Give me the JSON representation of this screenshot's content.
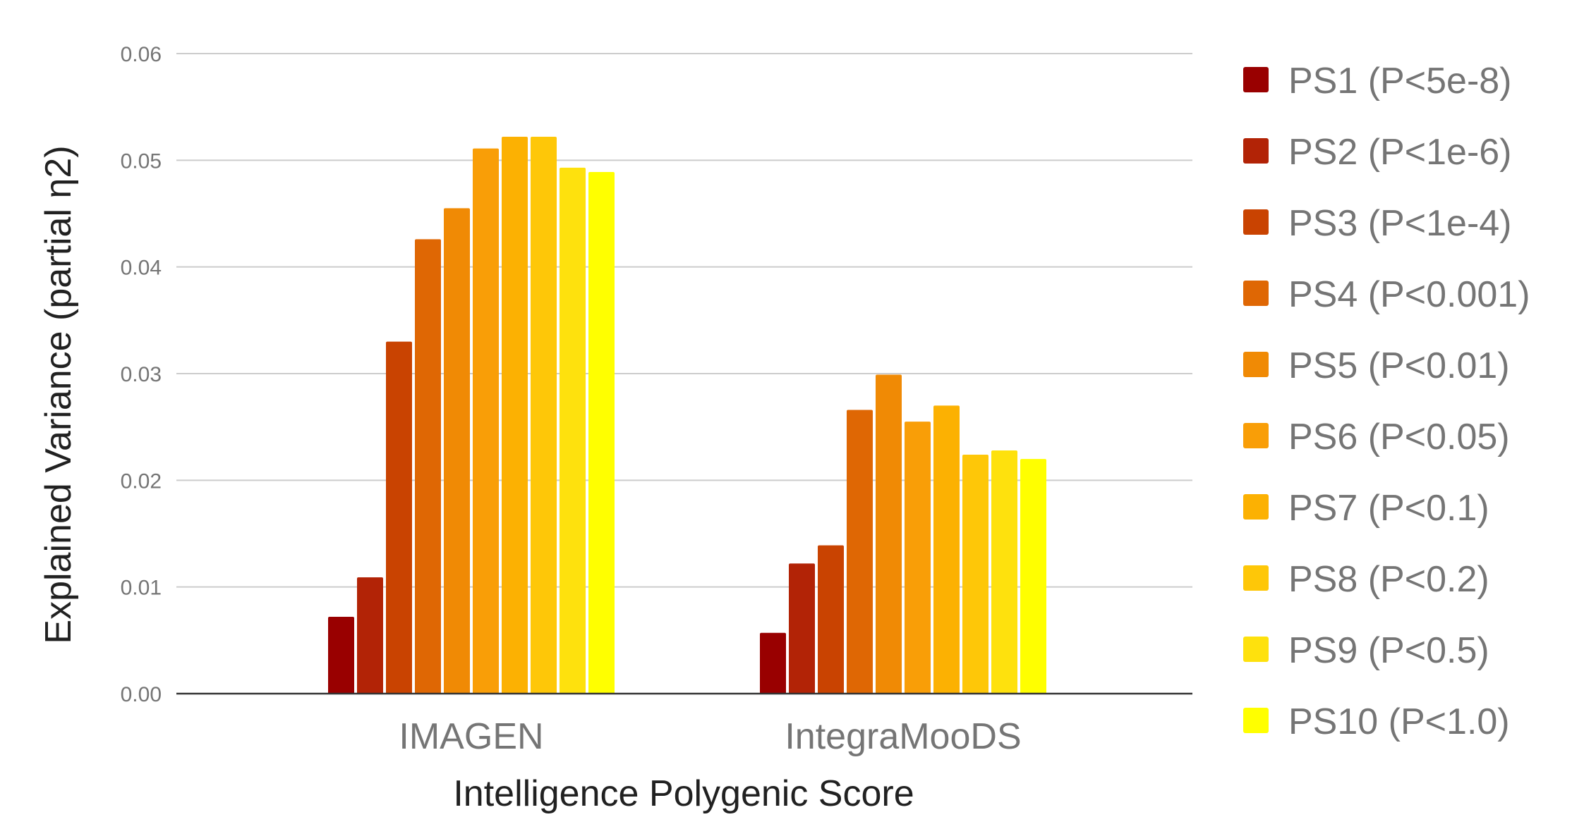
{
  "chart_data": {
    "type": "bar",
    "title": "",
    "xlabel": "Intelligence Polygenic Score",
    "ylabel": "Explained Variance (partial η2)",
    "ylim": [
      0,
      0.06
    ],
    "y_ticks": [
      "0.00",
      "0.01",
      "0.02",
      "0.03",
      "0.04",
      "0.05",
      "0.06"
    ],
    "y_tick_values": [
      0,
      0.01,
      0.02,
      0.03,
      0.04,
      0.05,
      0.06
    ],
    "grid": true,
    "legend_position": "right",
    "categories": [
      "IMAGEN",
      "IntegraMooDS"
    ],
    "series": [
      {
        "name": "PS1 (P<5e-8)",
        "color": "#990000",
        "values": [
          0.0072,
          0.0057
        ]
      },
      {
        "name": "PS2 (P<1e-6)",
        "color": "#b22306",
        "values": [
          0.0109,
          0.0122
        ]
      },
      {
        "name": "PS3 (P<1e-4)",
        "color": "#c94301",
        "values": [
          0.033,
          0.0139
        ]
      },
      {
        "name": "PS4 (P<0.001)",
        "color": "#df6704",
        "values": [
          0.0426,
          0.0266
        ]
      },
      {
        "name": "PS5 (P<0.01)",
        "color": "#f08a05",
        "values": [
          0.0455,
          0.0299
        ]
      },
      {
        "name": "PS6 (P<0.05)",
        "color": "#f99e07",
        "values": [
          0.0511,
          0.0255
        ]
      },
      {
        "name": "PS7 (P<0.1)",
        "color": "#fcb102",
        "values": [
          0.0522,
          0.027
        ]
      },
      {
        "name": "PS8 (P<0.2)",
        "color": "#fec708",
        "values": [
          0.0522,
          0.0224
        ]
      },
      {
        "name": "PS9 (P<0.5)",
        "color": "#fee10d",
        "values": [
          0.0493,
          0.0228
        ]
      },
      {
        "name": "PS10 (P<1.0)",
        "color": "#ffff00",
        "values": [
          0.0489,
          0.022
        ]
      }
    ]
  }
}
